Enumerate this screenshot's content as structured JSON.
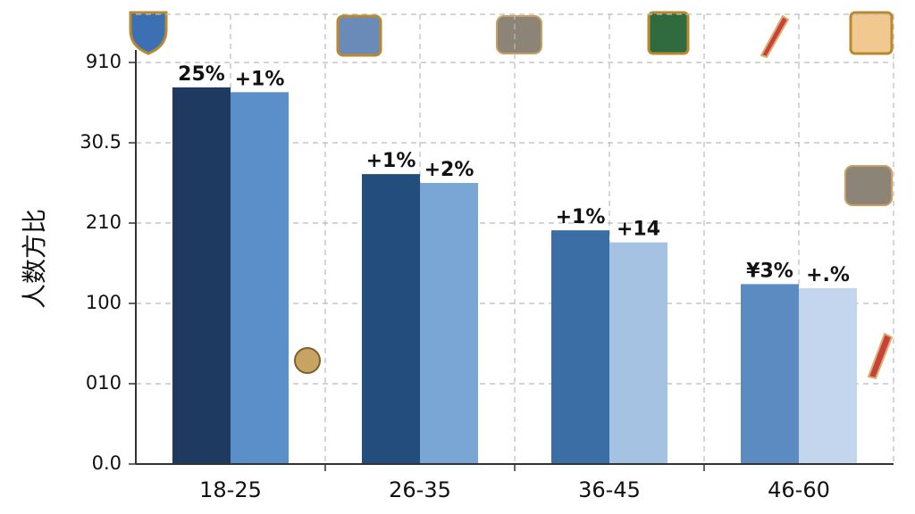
{
  "chart_data": {
    "type": "bar",
    "y_label": "人数方比",
    "categories": [
      "18-25",
      "26-35",
      "36-45",
      "46-60"
    ],
    "series": [
      {
        "colors": [
          "#1f3a60",
          "#234d7c",
          "#3a6ea5",
          "#5b8bc0"
        ],
        "values": [
          4.69,
          3.61,
          2.91,
          2.24
        ],
        "labels": [
          "25%",
          "+1%",
          "+1%",
          "¥3%"
        ]
      },
      {
        "colors": [
          "#5b8fca",
          "#7aa6d6",
          "#a5c2e3",
          "#c3d6ee"
        ],
        "values": [
          4.63,
          3.5,
          2.76,
          2.19
        ],
        "labels": [
          "+1%",
          "+2%",
          "+14",
          "+.%"
        ]
      }
    ],
    "ylim": [
      0,
      5.6
    ],
    "yticks": [
      {
        "value": 0,
        "label": "0.0"
      },
      {
        "value": 1,
        "label": "010"
      },
      {
        "value": 2,
        "label": "100"
      },
      {
        "value": 3,
        "label": "210"
      },
      {
        "value": 4,
        "label": "30.5"
      },
      {
        "value": 5,
        "label": "910"
      }
    ],
    "grid": true
  }
}
